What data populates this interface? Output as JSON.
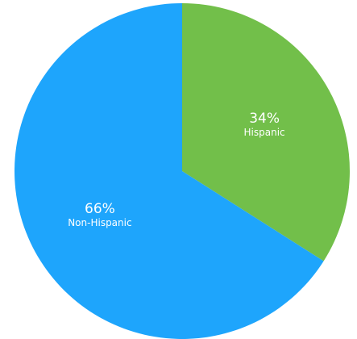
{
  "chart_data": {
    "type": "pie",
    "title": "",
    "slices": [
      {
        "label": "Hispanic",
        "value": 34,
        "display": "34%",
        "color": "#72bf4a"
      },
      {
        "label": "Non-Hispanic",
        "value": 66,
        "display": "66%",
        "color": "#1ea5fc"
      }
    ],
    "start": "12 o'clock",
    "direction": "clockwise",
    "legend": "none"
  }
}
